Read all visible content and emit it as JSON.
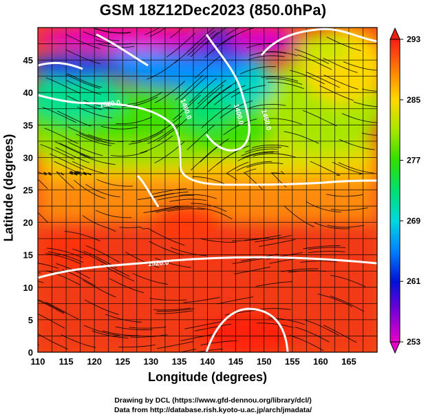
{
  "title": "GSM 18Z12Dec2023 (850.0hPa)",
  "x_axis": {
    "label": "Longitude (degrees)",
    "min": 110,
    "max": 170,
    "ticks": [
      "110",
      "115",
      "120",
      "125",
      "130",
      "135",
      "140",
      "145",
      "150",
      "155",
      "160",
      "165"
    ]
  },
  "y_axis": {
    "label": "Latitude  (degrees)",
    "min": 0,
    "max": 50,
    "ticks": [
      "0",
      "5",
      "10",
      "15",
      "20",
      "25",
      "30",
      "35",
      "40",
      "45"
    ]
  },
  "colorbar": {
    "min": 253,
    "max": 293,
    "ticks": [
      "253",
      "261",
      "269",
      "277",
      "285",
      "293"
    ],
    "colors": [
      "#e600c8",
      "#7a00d9",
      "#0012d6",
      "#0080ff",
      "#00d8e0",
      "#00e070",
      "#30e000",
      "#a8e600",
      "#ffd800",
      "#ff9000",
      "#ff4a10",
      "#f02010"
    ]
  },
  "contour_labels": [
    "1520.0",
    "1460.0",
    "1400.0",
    "1460.0",
    "1520.0"
  ],
  "credits": {
    "line1": "Drawing by DCL (https://www.gfd-dennou.org/library/dcl/)",
    "line2": "Data from http://database.rish.kyoto-u.ac.jp/arch/jmadata/"
  }
}
